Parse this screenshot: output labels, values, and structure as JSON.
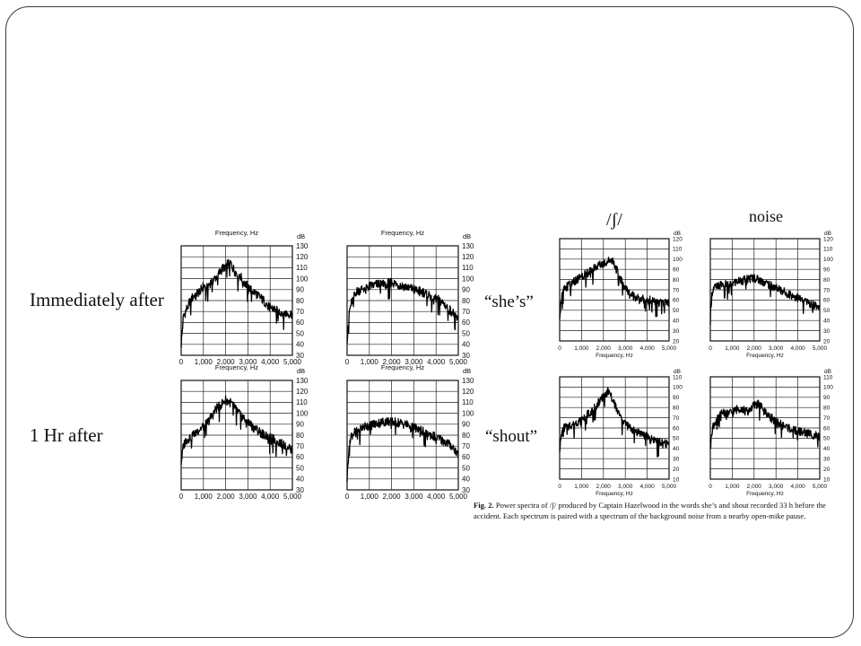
{
  "labels": {
    "immediately_after": "Immediately after",
    "one_hr_after": "1 Hr after",
    "shes": "“she’s”",
    "shout": "“shout”",
    "phoneme": "/ʃ/",
    "noise": "noise"
  },
  "caption": {
    "fig": "Fig. 2.",
    "text": "Power spectra of /ʃ/ produced by Captain Hazelwood in the words she’s and shout recorded 33 h before the accident. Each spectrum is paired with a spectrum of the background noise from a nearby open-mike pause."
  },
  "chart_data": [
    {
      "type": "line",
      "id": "left-top-1",
      "title": "Frequency, Hz",
      "xlabel": "",
      "ylabel": "dB",
      "xlim": [
        0,
        5000
      ],
      "ylim": [
        30,
        130
      ],
      "xticks": [
        "0",
        "1,000",
        "2,000",
        "3,000",
        "4,000",
        "5,000"
      ],
      "yticks": [
        "130",
        "120",
        "110",
        "100",
        "90",
        "80",
        "70",
        "60",
        "50",
        "40",
        "30"
      ],
      "x": [
        0,
        100,
        200,
        400,
        600,
        800,
        1000,
        1200,
        1400,
        1600,
        1800,
        2000,
        2200,
        2400,
        2600,
        2800,
        3000,
        3200,
        3400,
        3600,
        3800,
        4000,
        4200,
        4400,
        4600,
        4800,
        5000
      ],
      "y": [
        40,
        65,
        70,
        80,
        85,
        88,
        93,
        94,
        98,
        102,
        108,
        112,
        115,
        107,
        104,
        98,
        93,
        89,
        86,
        82,
        78,
        74,
        72,
        70,
        69,
        68,
        68
      ]
    },
    {
      "type": "line",
      "id": "left-top-2",
      "title": "Frequency, Hz",
      "xlabel": "",
      "ylabel": "dB",
      "xlim": [
        0,
        5000
      ],
      "ylim": [
        30,
        130
      ],
      "xticks": [
        "0",
        "1,000",
        "2,000",
        "3,000",
        "4,000",
        "5,000"
      ],
      "yticks": [
        "130",
        "120",
        "110",
        "100",
        "90",
        "80",
        "70",
        "60",
        "50",
        "40",
        "30"
      ],
      "x": [
        0,
        100,
        200,
        400,
        600,
        800,
        1000,
        1200,
        1400,
        1600,
        1800,
        2000,
        2200,
        2400,
        2600,
        2800,
        3000,
        3200,
        3400,
        3600,
        3800,
        4000,
        4200,
        4400,
        4600,
        4800,
        5000
      ],
      "y": [
        45,
        70,
        78,
        88,
        90,
        92,
        93,
        94,
        95,
        96,
        96,
        97,
        95,
        94,
        93,
        92,
        90,
        89,
        88,
        86,
        84,
        82,
        80,
        76,
        72,
        68,
        62
      ]
    },
    {
      "type": "line",
      "id": "left-bottom-1",
      "title": "Frequency, Hz",
      "xlabel": "",
      "ylabel": "dB",
      "xlim": [
        0,
        5000
      ],
      "ylim": [
        30,
        130
      ],
      "xticks": [
        "0",
        "1,000",
        "2,000",
        "3,000",
        "4,000",
        "5,000"
      ],
      "yticks": [
        "130",
        "120",
        "110",
        "100",
        "90",
        "80",
        "70",
        "60",
        "50",
        "40",
        "30"
      ],
      "x": [
        0,
        100,
        200,
        400,
        600,
        800,
        1000,
        1200,
        1400,
        1600,
        1800,
        2000,
        2200,
        2400,
        2600,
        2800,
        3000,
        3200,
        3400,
        3600,
        3800,
        4000,
        4200,
        4400,
        4600,
        4800,
        5000
      ],
      "y": [
        55,
        70,
        75,
        78,
        82,
        85,
        88,
        92,
        98,
        105,
        108,
        112,
        110,
        106,
        100,
        96,
        92,
        88,
        85,
        82,
        80,
        78,
        76,
        74,
        72,
        70,
        67
      ]
    },
    {
      "type": "line",
      "id": "left-bottom-2",
      "title": "Frequency, Hz",
      "xlabel": "",
      "ylabel": "dB",
      "xlim": [
        0,
        5000
      ],
      "ylim": [
        30,
        130
      ],
      "xticks": [
        "0",
        "1,000",
        "2,000",
        "3,000",
        "4,000",
        "5,000"
      ],
      "yticks": [
        "130",
        "120",
        "110",
        "100",
        "90",
        "80",
        "70",
        "60",
        "50",
        "40",
        "30"
      ],
      "x": [
        0,
        100,
        200,
        400,
        600,
        800,
        1000,
        1200,
        1400,
        1600,
        1800,
        2000,
        2200,
        2400,
        2600,
        2800,
        3000,
        3200,
        3400,
        3600,
        3800,
        4000,
        4200,
        4400,
        4600,
        4800,
        5000
      ],
      "y": [
        40,
        75,
        80,
        84,
        86,
        88,
        89,
        90,
        91,
        92,
        93,
        92,
        92,
        91,
        90,
        89,
        87,
        86,
        84,
        82,
        80,
        78,
        76,
        74,
        72,
        68,
        62
      ]
    },
    {
      "type": "line",
      "id": "right-top-1",
      "title": "",
      "xlabel": "Frequency, Hz",
      "ylabel": "dB",
      "xlim": [
        0,
        5000
      ],
      "ylim": [
        20,
        120
      ],
      "xticks": [
        "0",
        "1,000",
        "2,000",
        "3,000",
        "4,000",
        "5,000"
      ],
      "yticks": [
        "120",
        "110",
        "100",
        "90",
        "80",
        "70",
        "60",
        "50",
        "40",
        "30",
        "20"
      ],
      "x": [
        0,
        100,
        200,
        400,
        600,
        800,
        1000,
        1200,
        1400,
        1600,
        1800,
        2000,
        2200,
        2400,
        2600,
        2800,
        3000,
        3200,
        3400,
        3600,
        3800,
        4000,
        4200,
        4400,
        4600,
        4800,
        5000
      ],
      "y": [
        45,
        65,
        70,
        75,
        78,
        80,
        84,
        86,
        88,
        92,
        94,
        96,
        98,
        100,
        90,
        80,
        72,
        66,
        64,
        62,
        61,
        60,
        60,
        59,
        58,
        58,
        58
      ]
    },
    {
      "type": "line",
      "id": "right-top-2",
      "title": "",
      "xlabel": "Frequency, Hz",
      "ylabel": "dB",
      "xlim": [
        0,
        5000
      ],
      "ylim": [
        20,
        120
      ],
      "xticks": [
        "0",
        "1,000",
        "2,000",
        "3,000",
        "4,000",
        "5,000"
      ],
      "yticks": [
        "120",
        "110",
        "100",
        "90",
        "80",
        "70",
        "60",
        "50",
        "40",
        "30",
        "20"
      ],
      "x": [
        0,
        100,
        200,
        400,
        600,
        800,
        1000,
        1200,
        1400,
        1600,
        1800,
        2000,
        2200,
        2400,
        2600,
        2800,
        3000,
        3200,
        3400,
        3600,
        3800,
        4000,
        4200,
        4400,
        4600,
        4800,
        5000
      ],
      "y": [
        50,
        70,
        72,
        74,
        76,
        75,
        76,
        78,
        79,
        80,
        81,
        82,
        80,
        78,
        76,
        74,
        72,
        70,
        68,
        66,
        64,
        62,
        60,
        58,
        56,
        55,
        54
      ]
    },
    {
      "type": "line",
      "id": "right-bottom-1",
      "title": "",
      "xlabel": "Frequency, Hz",
      "ylabel": "dB",
      "xlim": [
        0,
        5000
      ],
      "ylim": [
        10,
        110
      ],
      "xticks": [
        "0",
        "1,000",
        "2,000",
        "3,000",
        "4,000",
        "5,000"
      ],
      "yticks": [
        "110",
        "100",
        "90",
        "80",
        "70",
        "60",
        "50",
        "40",
        "30",
        "20",
        "10"
      ],
      "x": [
        0,
        100,
        200,
        400,
        600,
        800,
        1000,
        1200,
        1400,
        1600,
        1800,
        2000,
        2200,
        2400,
        2600,
        2800,
        3000,
        3200,
        3400,
        3600,
        3800,
        4000,
        4200,
        4400,
        4600,
        4800,
        5000
      ],
      "y": [
        40,
        55,
        60,
        62,
        64,
        66,
        68,
        72,
        76,
        80,
        86,
        92,
        96,
        90,
        78,
        70,
        65,
        60,
        58,
        56,
        54,
        52,
        50,
        48,
        46,
        45,
        44
      ]
    },
    {
      "type": "line",
      "id": "right-bottom-2",
      "title": "",
      "xlabel": "Frequency, Hz",
      "ylabel": "dB",
      "xlim": [
        0,
        5000
      ],
      "ylim": [
        10,
        110
      ],
      "xticks": [
        "0",
        "1,000",
        "2,000",
        "3,000",
        "4,000",
        "5,000"
      ],
      "yticks": [
        "110",
        "100",
        "90",
        "80",
        "70",
        "60",
        "50",
        "40",
        "30",
        "20",
        "10"
      ],
      "x": [
        0,
        100,
        200,
        400,
        600,
        800,
        1000,
        1200,
        1400,
        1600,
        1800,
        2000,
        2200,
        2400,
        2600,
        2800,
        3000,
        3200,
        3400,
        3600,
        3800,
        4000,
        4200,
        4400,
        4600,
        4800,
        5000
      ],
      "y": [
        50,
        60,
        65,
        72,
        76,
        74,
        75,
        78,
        80,
        76,
        78,
        82,
        84,
        80,
        74,
        70,
        66,
        64,
        62,
        60,
        58,
        57,
        56,
        55,
        54,
        53,
        52
      ]
    }
  ]
}
